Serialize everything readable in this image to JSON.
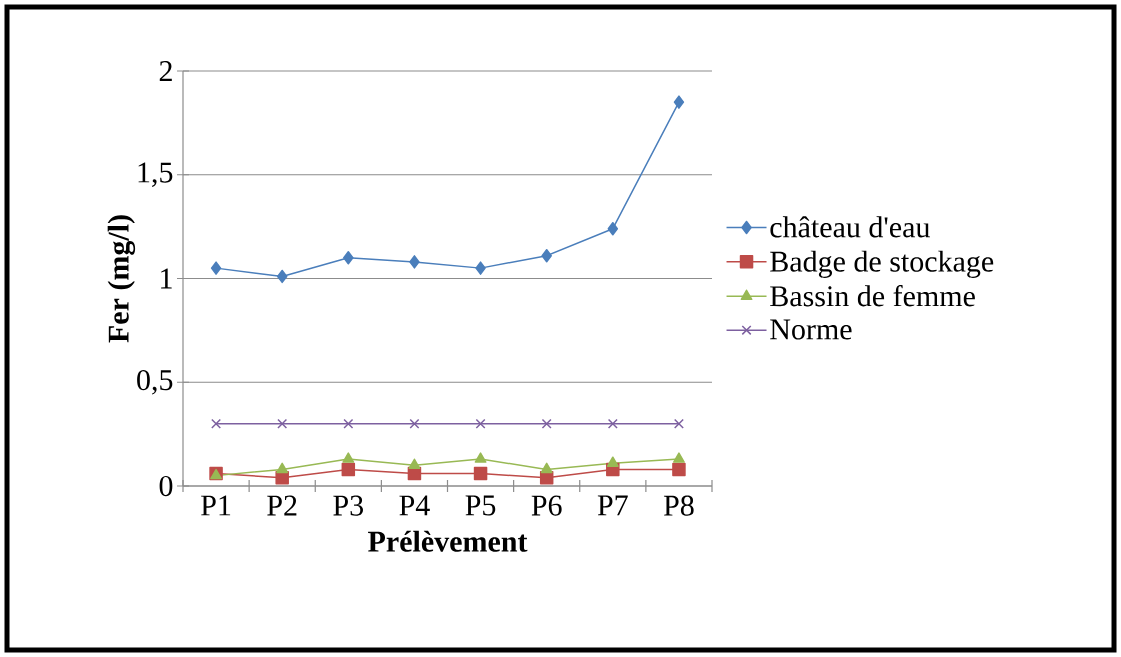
{
  "chart_data": {
    "type": "line",
    "xlabel": "Prélèvement",
    "ylabel": "Fer (mg/l)",
    "categories": [
      "P1",
      "P2",
      "P3",
      "P4",
      "P5",
      "P6",
      "P7",
      "P8"
    ],
    "series": [
      {
        "name": "château d'eau",
        "color": "#4a7ebb",
        "marker": "diamond",
        "values": [
          1.05,
          1.01,
          1.1,
          1.08,
          1.05,
          1.11,
          1.24,
          1.85
        ]
      },
      {
        "name": "Badge de stockage",
        "color": "#be4b48",
        "marker": "square",
        "values": [
          0.06,
          0.04,
          0.08,
          0.06,
          0.06,
          0.04,
          0.08,
          0.08
        ]
      },
      {
        "name": "Bassin de femme",
        "color": "#98b954",
        "marker": "triangle",
        "values": [
          0.05,
          0.08,
          0.13,
          0.1,
          0.13,
          0.08,
          0.11,
          0.13
        ]
      },
      {
        "name": "Norme",
        "color": "#7d60a0",
        "marker": "cross",
        "values": [
          0.3,
          0.3,
          0.3,
          0.3,
          0.3,
          0.3,
          0.3,
          0.3
        ]
      }
    ],
    "ylim": [
      0,
      2
    ],
    "yticks": [
      0,
      {
        "value": 0.5,
        "label": "0,5"
      },
      1,
      {
        "value": 1.5,
        "label": "1,5"
      },
      2
    ],
    "grid": "y",
    "legend": "right"
  }
}
